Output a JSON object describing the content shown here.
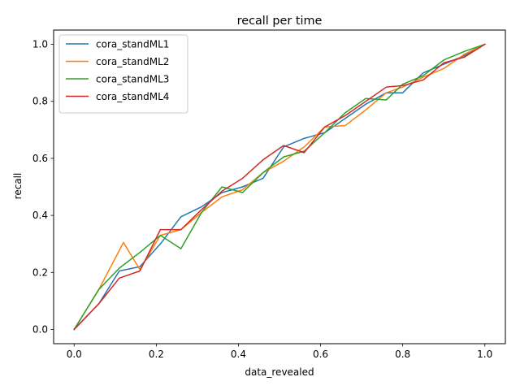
{
  "chart_data": {
    "type": "line",
    "title": "recall per time",
    "xlabel": "data_revealed",
    "ylabel": "recall",
    "xlim": [
      -0.05,
      1.05
    ],
    "ylim": [
      -0.05,
      1.05
    ],
    "xticks": [
      "0.0",
      "0.2",
      "0.4",
      "0.6",
      "0.8",
      "1.0"
    ],
    "yticks": [
      "0.0",
      "0.2",
      "0.4",
      "0.6",
      "0.8",
      "1.0"
    ],
    "grid": false,
    "legend_position": "upper-left",
    "series": [
      {
        "name": "cora_standML1",
        "color": "#1f77b4",
        "x": [
          0.0,
          0.06,
          0.11,
          0.16,
          0.21,
          0.26,
          0.31,
          0.36,
          0.41,
          0.46,
          0.51,
          0.56,
          0.61,
          0.66,
          0.71,
          0.76,
          0.8,
          0.85,
          0.9,
          0.95,
          1.0
        ],
        "y": [
          0.0,
          0.09,
          0.205,
          0.22,
          0.3,
          0.395,
          0.43,
          0.48,
          0.5,
          0.53,
          0.64,
          0.67,
          0.69,
          0.74,
          0.79,
          0.83,
          0.83,
          0.9,
          0.93,
          0.96,
          1.0
        ]
      },
      {
        "name": "cora_standML2",
        "color": "#ff7f0e",
        "x": [
          0.0,
          0.06,
          0.12,
          0.16,
          0.21,
          0.26,
          0.31,
          0.36,
          0.41,
          0.46,
          0.51,
          0.56,
          0.61,
          0.66,
          0.71,
          0.76,
          0.8,
          0.85,
          0.9,
          0.95,
          1.0
        ],
        "y": [
          0.0,
          0.14,
          0.305,
          0.21,
          0.33,
          0.35,
          0.41,
          0.465,
          0.49,
          0.55,
          0.59,
          0.64,
          0.71,
          0.715,
          0.77,
          0.83,
          0.85,
          0.885,
          0.915,
          0.965,
          1.0
        ]
      },
      {
        "name": "cora_standML3",
        "color": "#2ca02c",
        "x": [
          0.0,
          0.06,
          0.11,
          0.16,
          0.21,
          0.26,
          0.31,
          0.36,
          0.41,
          0.46,
          0.51,
          0.56,
          0.61,
          0.66,
          0.71,
          0.76,
          0.8,
          0.85,
          0.9,
          0.95,
          1.0
        ],
        "y": [
          0.0,
          0.14,
          0.215,
          0.27,
          0.33,
          0.283,
          0.41,
          0.5,
          0.48,
          0.55,
          0.605,
          0.625,
          0.69,
          0.76,
          0.81,
          0.805,
          0.86,
          0.89,
          0.945,
          0.975,
          1.0
        ]
      },
      {
        "name": "cora_standML4",
        "color": "#d62728",
        "x": [
          0.0,
          0.06,
          0.11,
          0.16,
          0.21,
          0.26,
          0.31,
          0.36,
          0.41,
          0.46,
          0.51,
          0.56,
          0.61,
          0.66,
          0.71,
          0.76,
          0.8,
          0.85,
          0.9,
          0.95,
          1.0
        ],
        "y": [
          0.0,
          0.09,
          0.18,
          0.205,
          0.35,
          0.35,
          0.42,
          0.485,
          0.53,
          0.595,
          0.645,
          0.62,
          0.71,
          0.75,
          0.8,
          0.85,
          0.855,
          0.875,
          0.935,
          0.955,
          1.0
        ]
      }
    ]
  }
}
